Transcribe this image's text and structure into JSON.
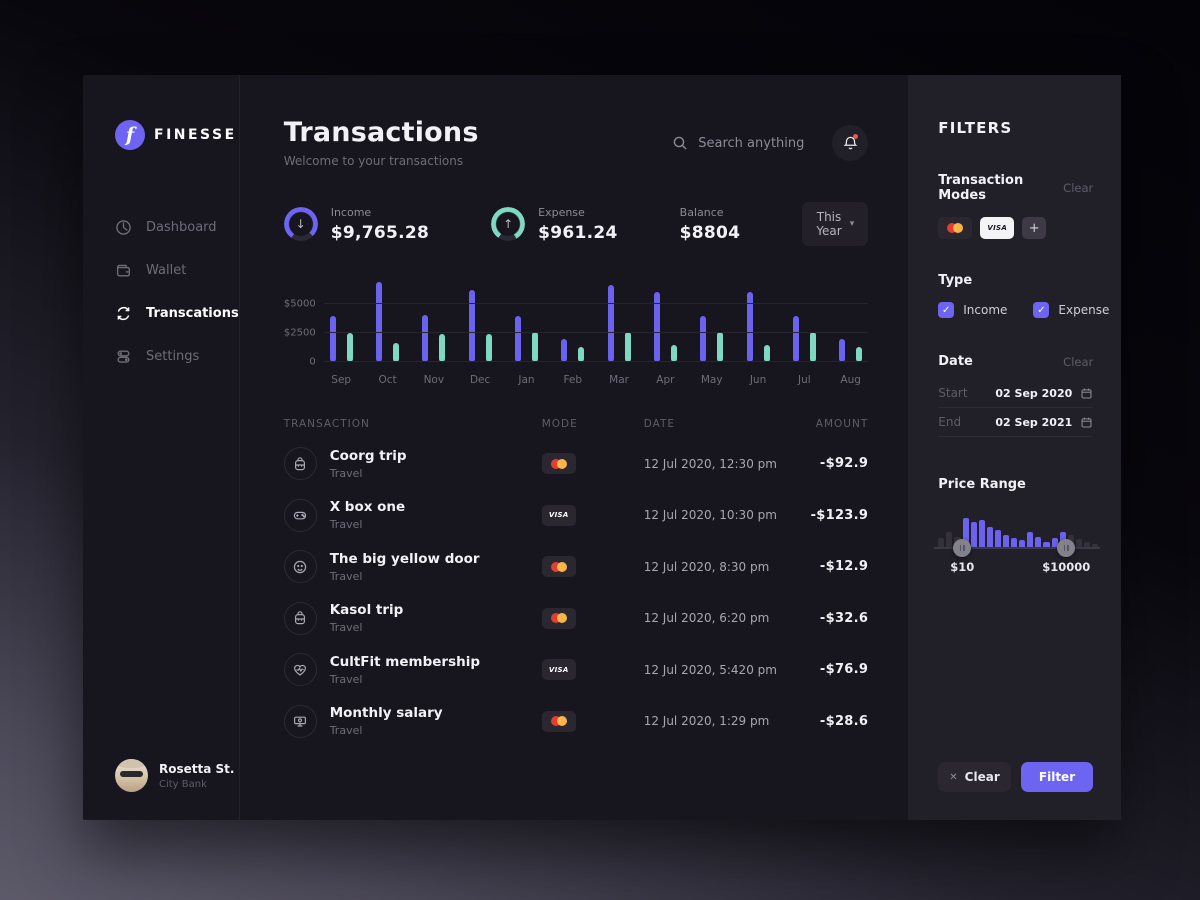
{
  "brand": {
    "name": "FINESSE",
    "logo_letter": "f"
  },
  "sidebar": {
    "items": [
      {
        "label": "Dashboard",
        "icon": "dashboard-icon",
        "active": false
      },
      {
        "label": "Wallet",
        "icon": "wallet-icon",
        "active": false
      },
      {
        "label": "Transcations",
        "icon": "transactions-icon",
        "active": true
      },
      {
        "label": "Settings",
        "icon": "settings-icon",
        "active": false
      }
    ],
    "user": {
      "name": "Rosetta St.",
      "bank": "City Bank"
    }
  },
  "header": {
    "title": "Transactions",
    "subtitle": "Welcome to your transactions",
    "search_placeholder": "Search anything",
    "notification_has_alert": true
  },
  "stats": [
    {
      "label": "Income",
      "value": "$9,765.28",
      "direction": "down",
      "ring_color": "#6d65f1",
      "ring_fill_pct": 78
    },
    {
      "label": "Expense",
      "value": "$961.24",
      "direction": "up",
      "ring_color": "#7fd8c3",
      "ring_fill_pct": 82
    },
    {
      "label": "Balance",
      "value": "$8804",
      "direction": "",
      "ring_color": "",
      "ring_fill_pct": 0
    }
  ],
  "period_selector": {
    "value": "This Year"
  },
  "chart_data": {
    "type": "bar",
    "title": "",
    "xlabel": "",
    "ylabel": "",
    "categories": [
      "Sep",
      "Oct",
      "Nov",
      "Dec",
      "Jan",
      "Feb",
      "Mar",
      "Apr",
      "May",
      "Jun",
      "Jul",
      "Aug"
    ],
    "series": [
      {
        "name": "Income",
        "color": "#6b62ee",
        "values": [
          4000,
          6900,
          4050,
          6200,
          4000,
          1950,
          6600,
          6000,
          4000,
          6050,
          4000,
          1950
        ]
      },
      {
        "name": "Expense",
        "color": "#7ed8c3",
        "values": [
          2500,
          1650,
          2400,
          2400,
          2550,
          1300,
          2550,
          1500,
          2550,
          1500,
          2550,
          1300
        ]
      }
    ],
    "yticks": [
      {
        "label": "$5000",
        "value": 5000
      },
      {
        "label": "$2500",
        "value": 2500
      },
      {
        "label": "0",
        "value": 0
      }
    ],
    "ylim": [
      0,
      7200
    ],
    "grid": true,
    "legend_position": "none"
  },
  "table": {
    "headers": {
      "transaction": "TRANSACTION",
      "mode": "MODE",
      "date": "DATE",
      "amount": "AMOUNT"
    },
    "rows": [
      {
        "name": "Coorg trip",
        "category": "Travel",
        "mode": "mastercard",
        "icon": "backpack-icon",
        "date": "12 Jul 2020, 12:30 pm",
        "amount": "-$92.9"
      },
      {
        "name": "X box one",
        "category": "Travel",
        "mode": "visa",
        "icon": "controller-icon",
        "date": "12 Jul 2020, 10:30 pm",
        "amount": "-$123.9"
      },
      {
        "name": "The big yellow door",
        "category": "Travel",
        "mode": "mastercard",
        "icon": "face-icon",
        "date": "12 Jul 2020, 8:30 pm",
        "amount": "-$12.9"
      },
      {
        "name": "Kasol trip",
        "category": "Travel",
        "mode": "mastercard",
        "icon": "backpack-icon",
        "date": "12 Jul 2020, 6:20 pm",
        "amount": "-$32.6"
      },
      {
        "name": "CultFit membership",
        "category": "Travel",
        "mode": "visa",
        "icon": "heart-pulse-icon",
        "date": "12 Jul 2020, 5:420 pm",
        "amount": "-$76.9"
      },
      {
        "name": "Monthly salary",
        "category": "Travel",
        "mode": "mastercard",
        "icon": "salary-icon",
        "date": "12 Jul 2020, 1:29 pm",
        "amount": "-$28.6"
      }
    ]
  },
  "filters": {
    "title": "FILTERS",
    "transaction_modes": {
      "label": "Transaction Modes",
      "clear": "Clear",
      "chips": [
        "mastercard",
        "visa",
        "add"
      ]
    },
    "type": {
      "label": "Type",
      "options": [
        {
          "label": "Income",
          "checked": true
        },
        {
          "label": "Expense",
          "checked": true
        }
      ]
    },
    "date": {
      "label": "Date",
      "clear": "Clear",
      "start_label": "Start",
      "start_value": "02 Sep 2020",
      "end_label": "End",
      "end_value": "02 Sep 2021"
    },
    "price_range": {
      "label": "Price Range",
      "min_label": "$10",
      "max_label": "$10000",
      "bar_color_in": "#6b62ee",
      "bar_color_out": "#34313c",
      "bars": [
        {
          "h": 10,
          "in": false
        },
        {
          "h": 16,
          "in": false
        },
        {
          "h": 11,
          "in": false
        },
        {
          "h": 30,
          "in": true
        },
        {
          "h": 26,
          "in": true
        },
        {
          "h": 28,
          "in": true
        },
        {
          "h": 21,
          "in": true
        },
        {
          "h": 18,
          "in": true
        },
        {
          "h": 13,
          "in": true
        },
        {
          "h": 10,
          "in": true
        },
        {
          "h": 8,
          "in": true
        },
        {
          "h": 16,
          "in": true
        },
        {
          "h": 11,
          "in": true
        },
        {
          "h": 6,
          "in": true
        },
        {
          "h": 10,
          "in": true
        },
        {
          "h": 16,
          "in": true
        },
        {
          "h": 13,
          "in": false
        },
        {
          "h": 9,
          "in": false
        },
        {
          "h": 6,
          "in": false
        },
        {
          "h": 4,
          "in": false
        }
      ],
      "handle_left_index": 3,
      "handle_right_index": 16
    },
    "actions": {
      "clear": "Clear",
      "filter": "Filter"
    }
  }
}
